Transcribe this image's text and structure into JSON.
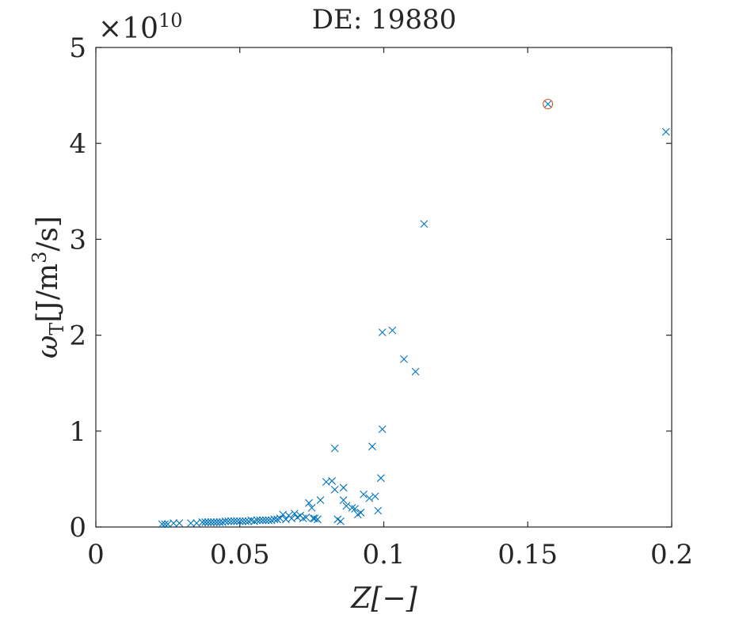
{
  "chart_data": {
    "type": "scatter",
    "title": "DE: 19880",
    "xlabel": "Z[−]",
    "ylabel": "ωT[J/m3/s]",
    "xlim": [
      0,
      0.2
    ],
    "ylim": [
      0,
      50000000000.0
    ],
    "y_multiplier": "×10",
    "y_multiplier_exponent": "10",
    "x_ticks": [
      0,
      0.05,
      0.1,
      0.15,
      0.2
    ],
    "x_tick_labels": [
      "0",
      "0.05",
      "0.1",
      "0.15",
      "0.2"
    ],
    "y_ticks": [
      0,
      10000000000.0,
      20000000000.0,
      30000000000.0,
      40000000000.0,
      50000000000.0
    ],
    "y_tick_labels": [
      "0",
      "1",
      "2",
      "3",
      "4",
      "5"
    ],
    "grid": false,
    "colors": {
      "marker": "#0072BD",
      "highlight": "#D95319",
      "axis": "#262626"
    },
    "series": [
      {
        "marker": "x",
        "points": [
          [
            0.023,
            300000000.0
          ],
          [
            0.024,
            300000000.0
          ],
          [
            0.025,
            300000000.0
          ],
          [
            0.027,
            400000000.0
          ],
          [
            0.029,
            400000000.0
          ],
          [
            0.033,
            400000000.0
          ],
          [
            0.035,
            400000000.0
          ],
          [
            0.037,
            500000000.0
          ],
          [
            0.038,
            500000000.0
          ],
          [
            0.039,
            500000000.0
          ],
          [
            0.04,
            500000000.0
          ],
          [
            0.041,
            500000000.0
          ],
          [
            0.042,
            500000000.0
          ],
          [
            0.043,
            500000000.0
          ],
          [
            0.044,
            500000000.0
          ],
          [
            0.045,
            600000000.0
          ],
          [
            0.046,
            600000000.0
          ],
          [
            0.047,
            600000000.0
          ],
          [
            0.048,
            600000000.0
          ],
          [
            0.049,
            600000000.0
          ],
          [
            0.05,
            600000000.0
          ],
          [
            0.051,
            600000000.0
          ],
          [
            0.052,
            600000000.0
          ],
          [
            0.053,
            600000000.0
          ],
          [
            0.054,
            700000000.0
          ],
          [
            0.055,
            600000000.0
          ],
          [
            0.056,
            700000000.0
          ],
          [
            0.057,
            700000000.0
          ],
          [
            0.058,
            700000000.0
          ],
          [
            0.059,
            700000000.0
          ],
          [
            0.06,
            700000000.0
          ],
          [
            0.061,
            700000000.0
          ],
          [
            0.062,
            800000000.0
          ],
          [
            0.063,
            800000000.0
          ],
          [
            0.064,
            900000000.0
          ],
          [
            0.065,
            1300000000.0
          ],
          [
            0.066,
            800000000.0
          ],
          [
            0.067,
            1200000000.0
          ],
          [
            0.068,
            900000000.0
          ],
          [
            0.069,
            1400000000.0
          ],
          [
            0.07,
            1000000000.0
          ],
          [
            0.071,
            1200000000.0
          ],
          [
            0.072,
            900000000.0
          ],
          [
            0.073,
            1000000000.0
          ],
          [
            0.074,
            2500000000.0
          ],
          [
            0.075,
            2000000000.0
          ],
          [
            0.0755,
            900000000.0
          ],
          [
            0.076,
            900000000.0
          ],
          [
            0.077,
            800000000.0
          ],
          [
            0.078,
            2800000000.0
          ],
          [
            0.08,
            4700000000.0
          ],
          [
            0.082,
            4800000000.0
          ],
          [
            0.083,
            8200000000.0
          ],
          [
            0.083,
            3900000000.0
          ],
          [
            0.084,
            800000000.0
          ],
          [
            0.085,
            600000000.0
          ],
          [
            0.086,
            4100000000.0
          ],
          [
            0.086,
            2800000000.0
          ],
          [
            0.087,
            2200000000.0
          ],
          [
            0.089,
            2000000000.0
          ],
          [
            0.09,
            1900000000.0
          ],
          [
            0.091,
            1300000000.0
          ],
          [
            0.092,
            1500000000.0
          ],
          [
            0.093,
            3400000000.0
          ],
          [
            0.095,
            3000000000.0
          ],
          [
            0.096,
            8400000000.0
          ],
          [
            0.097,
            3200000000.0
          ],
          [
            0.098,
            1700000000.0
          ],
          [
            0.099,
            5100000000.0
          ],
          [
            0.0995,
            10200000000.0
          ],
          [
            0.0995,
            20300000000.0
          ],
          [
            0.103,
            20500000000.0
          ],
          [
            0.107,
            17500000000.0
          ],
          [
            0.111,
            16200000000.0
          ],
          [
            0.114,
            31600000000.0
          ],
          [
            0.157,
            44100000000.0
          ],
          [
            0.198,
            41200000000.0
          ]
        ]
      },
      {
        "marker": "o",
        "highlight": true,
        "points": [
          [
            0.157,
            44100000000.0
          ]
        ]
      }
    ]
  }
}
